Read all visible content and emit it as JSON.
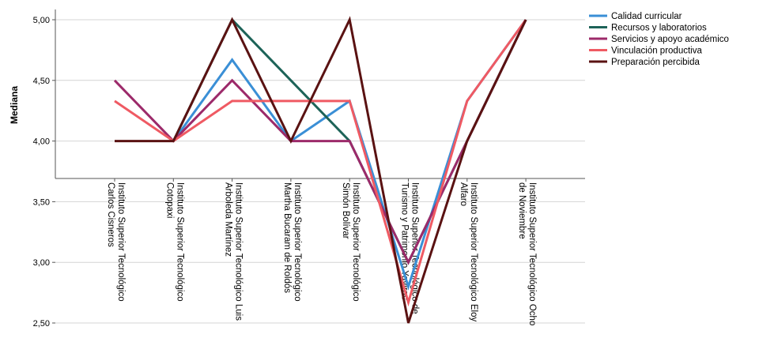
{
  "chart_data": {
    "type": "line",
    "ylabel": "Mediana",
    "xlabel": "",
    "ylim": [
      2.4,
      5.1
    ],
    "yticks": [
      "5,00",
      "4,50",
      "4,00",
      "3,50",
      "3,00",
      "2,50"
    ],
    "ytick_values": [
      5.0,
      4.5,
      4.0,
      3.5,
      3.0,
      2.5
    ],
    "grid": "horizontal",
    "legend_position": "top-right",
    "categories": [
      [
        "Instituto Superior Tecnológico",
        "Carlos Cisneros"
      ],
      [
        "Instituto Superior Tecnológico",
        "Cotopaxi"
      ],
      [
        "Instituto Superior Tecnológico Luis",
        "Arboleda Martínez"
      ],
      [
        "Instituto Superior Tecnológico",
        "Martha Bucaram de Roldós"
      ],
      [
        "Instituto Superior Tecnológico",
        "Simón Bolívar"
      ],
      [
        "Instituto Superior Tecnológico de",
        "Turismo y Patrimonio Yavirac"
      ],
      [
        "Instituto Superior Tecnológico Eloy",
        "Alfaro"
      ],
      [
        "Instituto Superior Tecnológico Ocho",
        "de Noviembre"
      ]
    ],
    "series": [
      {
        "name": "Calidad curricular",
        "color": "#3a8fd6",
        "values": [
          null,
          4.0,
          4.67,
          4.0,
          4.33,
          2.8,
          4.33,
          5.0
        ]
      },
      {
        "name": "Recursos y laboratorios",
        "color": "#1d6358",
        "values": [
          null,
          4.0,
          5.0,
          4.5,
          4.0,
          3.0,
          4.0,
          5.0
        ]
      },
      {
        "name": "Servicios y apoyo académico",
        "color": "#9c2a6a",
        "values": [
          4.5,
          4.0,
          4.5,
          4.0,
          4.0,
          3.0,
          4.0,
          5.0
        ]
      },
      {
        "name": "Vinculación productiva",
        "color": "#ef5a63",
        "values": [
          4.33,
          4.0,
          4.33,
          4.33,
          4.33,
          2.67,
          4.33,
          5.0
        ]
      },
      {
        "name": "Preparación percibida",
        "color": "#5a1212",
        "values": [
          4.0,
          4.0,
          5.0,
          4.0,
          5.0,
          2.5,
          4.0,
          5.0
        ]
      }
    ]
  }
}
